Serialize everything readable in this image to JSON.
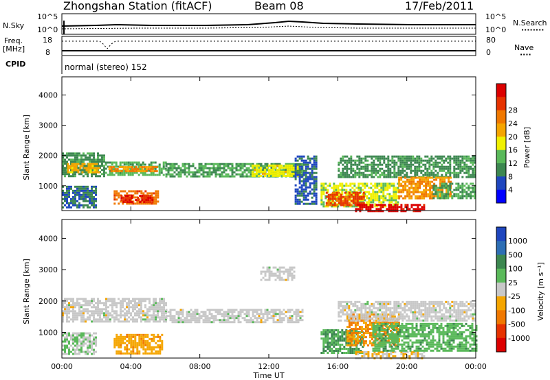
{
  "header": {
    "station": "Zhongshan Station (fitACF)",
    "beam": "Beam 08",
    "date": "17/Feb/2011"
  },
  "top_panels": {
    "nsky_label": "N.Sky",
    "nsky_ticks": [
      "10^5",
      "10^0"
    ],
    "nsearch_label": "N.Search",
    "nsearch_ticks": [
      "10^5",
      "10^0"
    ],
    "freq_label_1": "Freq.",
    "freq_label_2": "[MHz]",
    "freq_ticks": [
      "18",
      "8"
    ],
    "nave_label": "Nave",
    "nave_ticks": [
      "80",
      "0"
    ],
    "cpid_label": "CPID",
    "cpid_value": "normal (stereo) 152"
  },
  "colors": {
    "power_scale": [
      "#0000ff",
      "#1e46be",
      "#3c8750",
      "#5ab95a",
      "#f0f000",
      "#f5a500",
      "#f07800",
      "#e63200",
      "#dc0000"
    ],
    "velocity_scale": [
      "#1e46be",
      "#2d6eb4",
      "#3c8750",
      "#5ab95a",
      "#c8c8c8",
      "#f5a500",
      "#f07800",
      "#e63200",
      "#dc0000"
    ]
  },
  "chart_data": [
    {
      "type": "heatmap",
      "title": "",
      "xlabel": "",
      "ylabel": "Slant Range [km]",
      "x_ticks": [
        "00:00",
        "04:00",
        "08:00",
        "12:00",
        "16:00",
        "20:00",
        "00:00"
      ],
      "y_ticks": [
        "1000",
        "2000",
        "3000",
        "4000"
      ],
      "x_range_hours": [
        0,
        24
      ],
      "y_range_km": [
        180,
        4600
      ],
      "colorbar": {
        "label": "Power [dB]",
        "ticks": [
          "4",
          "8",
          "12",
          "16",
          "20",
          "24",
          "28"
        ],
        "range": [
          0,
          30
        ]
      },
      "echo_regions": [
        {
          "t0": 0.0,
          "t1": 2.5,
          "r0": 1350,
          "r1": 2100,
          "value": 9
        },
        {
          "t0": 0.3,
          "t1": 2.2,
          "r0": 1450,
          "r1": 1750,
          "value": 18
        },
        {
          "t0": 2.5,
          "t1": 6.0,
          "r0": 1350,
          "r1": 1800,
          "value": 11
        },
        {
          "t0": 2.7,
          "t1": 5.5,
          "r0": 1450,
          "r1": 1650,
          "value": 20
        },
        {
          "t0": 0.0,
          "t1": 2.0,
          "r0": 300,
          "r1": 1000,
          "value": 7
        },
        {
          "t0": 3.0,
          "t1": 5.6,
          "r0": 400,
          "r1": 850,
          "value": 22
        },
        {
          "t0": 3.4,
          "t1": 5.2,
          "r0": 480,
          "r1": 700,
          "value": 27
        },
        {
          "t0": 6.0,
          "t1": 14.0,
          "r0": 1300,
          "r1": 1750,
          "value": 10
        },
        {
          "t0": 11.0,
          "t1": 13.8,
          "r0": 1350,
          "r1": 1700,
          "value": 15
        },
        {
          "t0": 13.5,
          "t1": 14.8,
          "r0": 400,
          "r1": 2000,
          "value": 6
        },
        {
          "t0": 15.0,
          "t1": 19.5,
          "r0": 300,
          "r1": 1100,
          "value": 14
        },
        {
          "t0": 15.3,
          "t1": 17.5,
          "r0": 350,
          "r1": 800,
          "value": 24
        },
        {
          "t0": 17.0,
          "t1": 21.0,
          "r0": 180,
          "r1": 400,
          "value": 28
        },
        {
          "t0": 16.0,
          "t1": 24.0,
          "r0": 1300,
          "r1": 2000,
          "value": 9
        },
        {
          "t0": 19.5,
          "t1": 22.5,
          "r0": 600,
          "r1": 1300,
          "value": 20
        },
        {
          "t0": 21.5,
          "t1": 24.0,
          "r0": 600,
          "r1": 1100,
          "value": 10
        }
      ]
    },
    {
      "type": "heatmap",
      "title": "",
      "xlabel": "Time UT",
      "ylabel": "Slant Range [km]",
      "x_ticks": [
        "00:00",
        "04:00",
        "08:00",
        "12:00",
        "16:00",
        "20:00",
        "00:00"
      ],
      "y_ticks": [
        "1000",
        "2000",
        "3000",
        "4000"
      ],
      "x_range_hours": [
        0,
        24
      ],
      "y_range_km": [
        180,
        4600
      ],
      "colorbar": {
        "label": "Velocity [m s⁻¹]",
        "ticks": [
          "1000",
          "500",
          "100",
          "25",
          "-25",
          "-100",
          "-500",
          "-1000"
        ],
        "range": [
          -1200,
          1200
        ]
      },
      "echo_regions": [
        {
          "t0": 0.0,
          "t1": 6.0,
          "r0": 1350,
          "r1": 2100,
          "value": 0
        },
        {
          "t0": 6.0,
          "t1": 14.0,
          "r0": 1300,
          "r1": 1750,
          "value": 0
        },
        {
          "t0": 0.0,
          "t1": 2.0,
          "r0": 300,
          "r1": 1000,
          "value": 150
        },
        {
          "t0": 3.0,
          "t1": 5.8,
          "r0": 350,
          "r1": 950,
          "value": -300
        },
        {
          "t0": 15.0,
          "t1": 17.5,
          "r0": 350,
          "r1": 1100,
          "value": 400
        },
        {
          "t0": 16.5,
          "t1": 19.5,
          "r0": 600,
          "r1": 1600,
          "value": -400
        },
        {
          "t0": 17.0,
          "t1": 21.0,
          "r0": 180,
          "r1": 400,
          "value": -150
        },
        {
          "t0": 18.0,
          "t1": 24.0,
          "r0": 400,
          "r1": 1300,
          "value": 300
        },
        {
          "t0": 16.0,
          "t1": 24.0,
          "r0": 1350,
          "r1": 2000,
          "value": 0
        },
        {
          "t0": 11.5,
          "t1": 13.5,
          "r0": 2700,
          "r1": 3100,
          "value": 0
        }
      ]
    }
  ]
}
